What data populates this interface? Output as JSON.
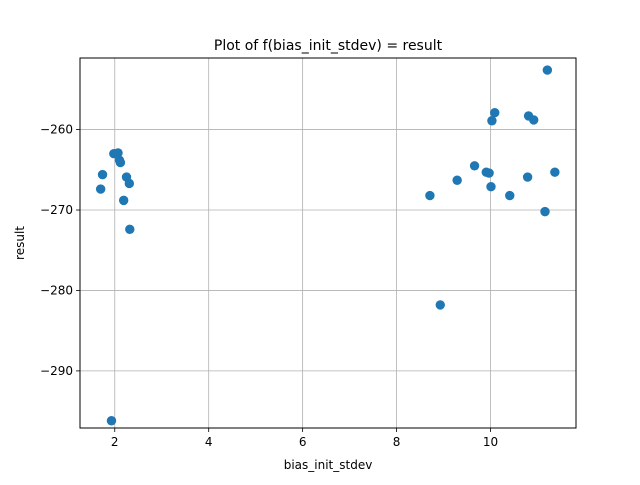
{
  "chart_data": {
    "type": "scatter",
    "title": "Plot of f(bias_init_stdev) = result",
    "xlabel": "bias_init_stdev",
    "ylabel": "result",
    "xlim": [
      1.26,
      11.82
    ],
    "ylim": [
      -297.1,
      -251.1
    ],
    "xticks": [
      2,
      4,
      6,
      8,
      10
    ],
    "xtick_labels": [
      "2",
      "4",
      "6",
      "8",
      "10"
    ],
    "yticks": [
      -290,
      -280,
      -270,
      -260
    ],
    "ytick_labels": [
      "−290",
      "−280",
      "−270",
      "−260"
    ],
    "grid": true,
    "marker_color": "#1f77b4",
    "points": [
      {
        "x": 1.7,
        "y": -267.4
      },
      {
        "x": 1.74,
        "y": -265.6
      },
      {
        "x": 1.93,
        "y": -296.2
      },
      {
        "x": 1.98,
        "y": -263.0
      },
      {
        "x": 2.07,
        "y": -262.9
      },
      {
        "x": 2.1,
        "y": -263.8
      },
      {
        "x": 2.12,
        "y": -264.1
      },
      {
        "x": 2.19,
        "y": -268.8
      },
      {
        "x": 2.25,
        "y": -265.9
      },
      {
        "x": 2.31,
        "y": -266.7
      },
      {
        "x": 2.32,
        "y": -272.4
      },
      {
        "x": 8.71,
        "y": -268.2
      },
      {
        "x": 8.93,
        "y": -281.8
      },
      {
        "x": 9.29,
        "y": -266.3
      },
      {
        "x": 9.66,
        "y": -264.5
      },
      {
        "x": 9.91,
        "y": -265.3
      },
      {
        "x": 9.97,
        "y": -265.4
      },
      {
        "x": 10.01,
        "y": -267.1
      },
      {
        "x": 10.03,
        "y": -258.9
      },
      {
        "x": 10.09,
        "y": -257.9
      },
      {
        "x": 10.41,
        "y": -268.2
      },
      {
        "x": 10.79,
        "y": -265.9
      },
      {
        "x": 10.81,
        "y": -258.3
      },
      {
        "x": 10.92,
        "y": -258.8
      },
      {
        "x": 11.16,
        "y": -270.2
      },
      {
        "x": 11.21,
        "y": -252.6
      },
      {
        "x": 11.37,
        "y": -265.3
      }
    ]
  }
}
